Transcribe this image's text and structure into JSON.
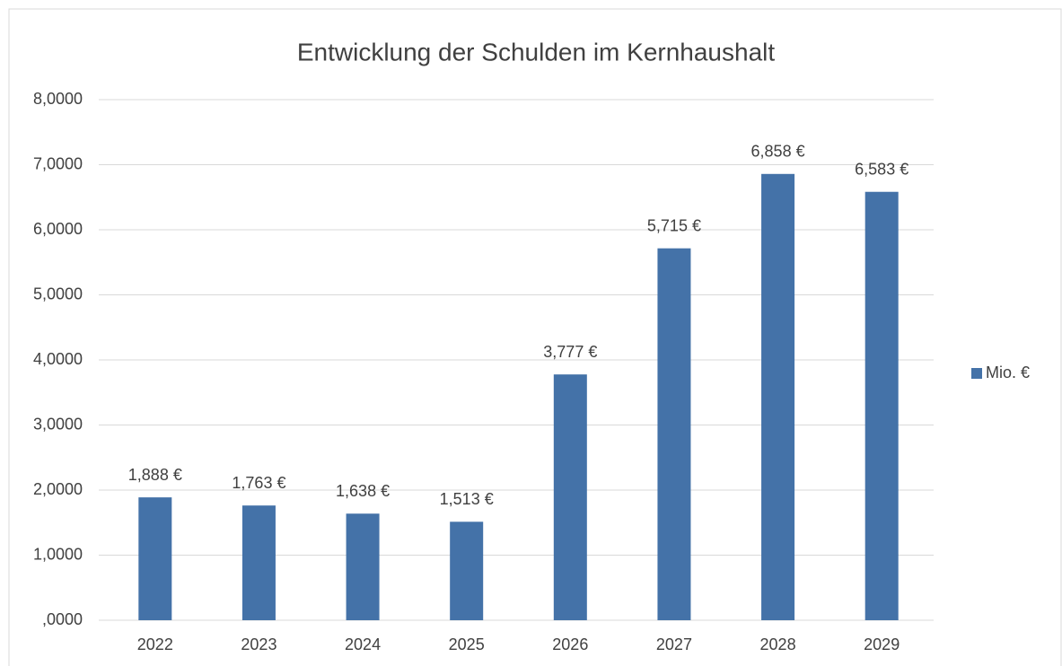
{
  "chart_data": {
    "type": "bar",
    "title": "Entwicklung der Schulden im Kernhaushalt",
    "categories": [
      "2022",
      "2023",
      "2024",
      "2025",
      "2026",
      "2027",
      "2028",
      "2029"
    ],
    "series": [
      {
        "name": "Mio. €",
        "color": "#4472a8",
        "values": [
          1.888,
          1.763,
          1.638,
          1.513,
          3.777,
          5.715,
          6.858,
          6.583
        ],
        "value_labels": [
          "1,888 €",
          "1,763 €",
          "1,638 €",
          "1,513 €",
          "3,777 €",
          "5,715 €",
          "6,858 €",
          "6,583 €"
        ]
      }
    ],
    "ylim": [
      0,
      8
    ],
    "yticks": [
      {
        "value": 0,
        "label": ",0000"
      },
      {
        "value": 1,
        "label": "1,0000"
      },
      {
        "value": 2,
        "label": "2,0000"
      },
      {
        "value": 3,
        "label": "3,0000"
      },
      {
        "value": 4,
        "label": "4,0000"
      },
      {
        "value": 5,
        "label": "5,0000"
      },
      {
        "value": 6,
        "label": "6,0000"
      },
      {
        "value": 7,
        "label": "7,0000"
      },
      {
        "value": 8,
        "label": "8,0000"
      }
    ],
    "grid": true,
    "legend": "right"
  }
}
